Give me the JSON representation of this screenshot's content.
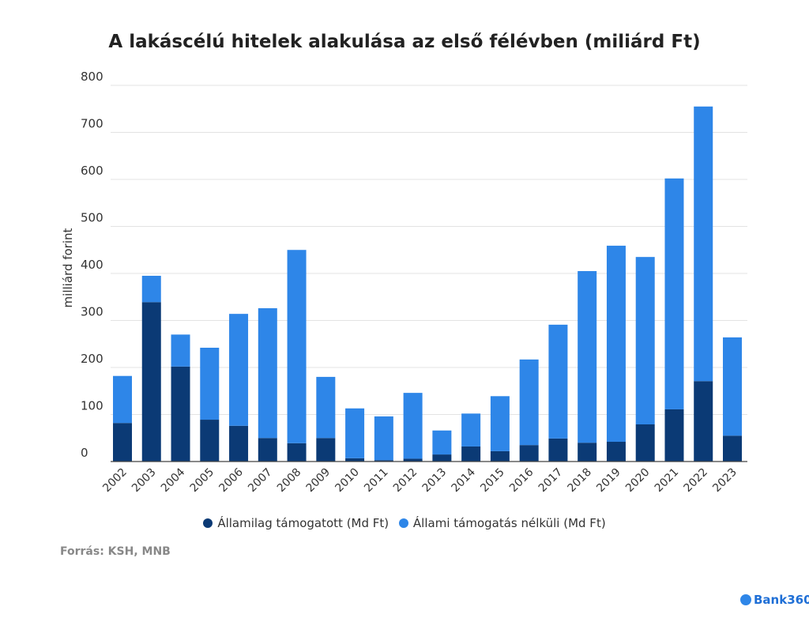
{
  "chart_data": {
    "type": "bar",
    "stacked": true,
    "title": "A lakáscélú hitelek alakulása az első félévben (miliárd Ft)",
    "xlabel": "",
    "ylabel": "milliárd forint",
    "ylim": [
      0,
      800
    ],
    "yticks": [
      "0",
      "100",
      "200",
      "300",
      "400",
      "500",
      "600",
      "700",
      "800"
    ],
    "grid": true,
    "legend_position": "bottom",
    "categories": [
      "2002",
      "2003",
      "2004",
      "2005",
      "2006",
      "2007",
      "2008",
      "2009",
      "2010",
      "2011",
      "2012",
      "2013",
      "2014",
      "2015",
      "2016",
      "2017",
      "2018",
      "2019",
      "2020",
      "2021",
      "2022",
      "2023"
    ],
    "series": [
      {
        "name": "Államilag támogatott (Md Ft)",
        "color": "#0b3a75",
        "values": [
          82,
          339,
          202,
          89,
          76,
          50,
          39,
          50,
          7,
          3,
          6,
          15,
          32,
          22,
          35,
          49,
          40,
          42,
          79,
          111,
          171,
          55
        ]
      },
      {
        "name": "Állami támogatás nélküli (Md Ft)",
        "color": "#2e86e8",
        "values": [
          100,
          56,
          68,
          153,
          238,
          276,
          411,
          130,
          106,
          93,
          140,
          51,
          70,
          117,
          182,
          242,
          365,
          417,
          356,
          491,
          584,
          209
        ]
      }
    ]
  },
  "source": "Forrás: KSH, MNB",
  "logo": "Bank360"
}
